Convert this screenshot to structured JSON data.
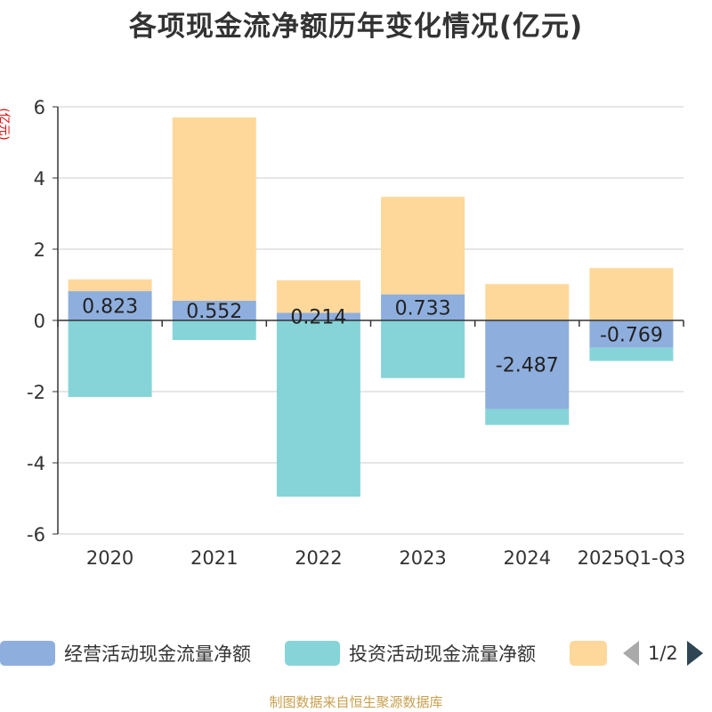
{
  "chart_data": {
    "type": "bar",
    "stacked": true,
    "title": "各项现金流净额历年变化情况(亿元)",
    "ylabel": "(亿元)",
    "categories": [
      "2020",
      "2021",
      "2022",
      "2023",
      "2024",
      "2025Q1-Q3"
    ],
    "ylim": [
      -6,
      6
    ],
    "yticks": [
      6,
      4,
      2,
      0,
      -2,
      -4,
      -6
    ],
    "grid": true,
    "series": [
      {
        "name": "经营活动现金流量净额",
        "color": "#8eaedd",
        "values": [
          0.823,
          0.552,
          0.214,
          0.733,
          -2.487,
          -0.769
        ],
        "labels": [
          "0.823",
          "0.552",
          "0.214",
          "0.733",
          "-2.487",
          "-0.769"
        ]
      },
      {
        "name": "投资活动现金流量净额",
        "color": "#86d4d8",
        "values": [
          -2.15,
          -0.55,
          -4.95,
          -1.62,
          -0.45,
          -0.37
        ]
      },
      {
        "name": "",
        "color": "#fdd89a",
        "values": [
          0.33,
          5.15,
          0.91,
          2.74,
          1.02,
          1.47
        ]
      }
    ]
  },
  "legend": {
    "items": [
      {
        "label": "经营活动现金流量净额"
      },
      {
        "label": "投资活动现金流量净额"
      },
      {
        "label": ""
      }
    ],
    "page": "1/2"
  },
  "source": "制图数据来自恒生聚源数据库"
}
